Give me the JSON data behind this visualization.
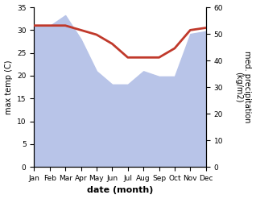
{
  "months": [
    "Jan",
    "Feb",
    "Mar",
    "Apr",
    "May",
    "Jun",
    "Jul",
    "Aug",
    "Sep",
    "Oct",
    "Nov",
    "Dec"
  ],
  "temperature": [
    31.0,
    31.0,
    31.0,
    30.0,
    29.0,
    27.0,
    24.0,
    24.0,
    24.0,
    26.0,
    30.0,
    30.5
  ],
  "precipitation": [
    53,
    53,
    57,
    48,
    36,
    31,
    31,
    36,
    34,
    34,
    50,
    51
  ],
  "temp_color": "#c0392b",
  "precip_color": "#b8c4e8",
  "title": "",
  "xlabel": "date (month)",
  "ylabel_left": "max temp (C)",
  "ylabel_right": "med. precipitation\n(kg/m2)",
  "ylim_left": [
    0,
    35
  ],
  "ylim_right": [
    0,
    60
  ],
  "yticks_left": [
    0,
    5,
    10,
    15,
    20,
    25,
    30,
    35
  ],
  "yticks_right": [
    0,
    10,
    20,
    30,
    40,
    50,
    60
  ],
  "bg_color": "#ffffff",
  "temp_linewidth": 2.0
}
